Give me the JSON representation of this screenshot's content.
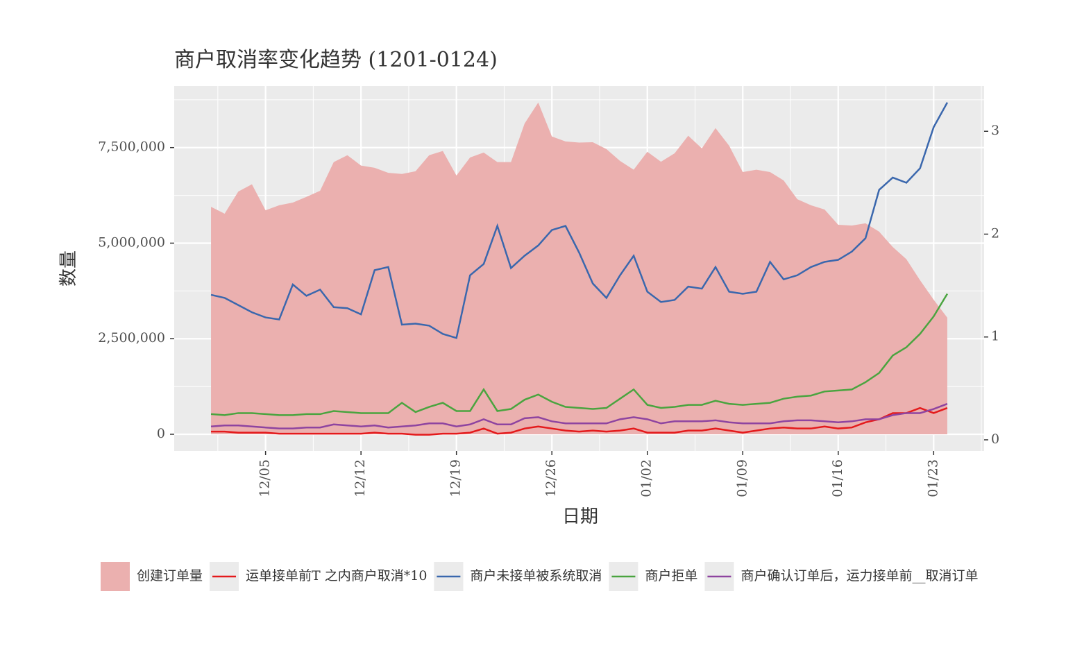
{
  "chart_data": {
    "type": "line",
    "title": "商户取消率变化趋势 (1201-0124)",
    "x_label": "日期",
    "y_label": "数量",
    "categories": [
      null,
      null,
      null,
      null,
      "12/05",
      null,
      null,
      null,
      null,
      null,
      null,
      "12/12",
      null,
      null,
      null,
      null,
      null,
      null,
      "12/19",
      null,
      null,
      null,
      null,
      null,
      null,
      "12/26",
      null,
      null,
      null,
      null,
      null,
      null,
      "01/02",
      null,
      null,
      null,
      null,
      null,
      null,
      "01/09",
      null,
      null,
      null,
      null,
      null,
      null,
      "01/16",
      null,
      null,
      null,
      null,
      null,
      null,
      "01/23",
      null
    ],
    "ylim": [
      -436000,
      9110000
    ],
    "yticks": [
      {
        "value": 0,
        "label": "0"
      },
      {
        "value": 2500000,
        "label": "2,500,000"
      },
      {
        "value": 5000000,
        "label": "5,000,000"
      },
      {
        "value": 7500000,
        "label": "7,500,000"
      }
    ],
    "y2lim": [
      -0.108,
      3.44
    ],
    "y2ticks": [
      0,
      1,
      2,
      3
    ],
    "grid": true,
    "legend": "bottom",
    "series": [
      {
        "name": "创建订单量",
        "type": "area",
        "color": "#ebb0af",
        "values": [
          5950000,
          5770000,
          6350000,
          6540000,
          5860000,
          5990000,
          6060000,
          6210000,
          6370000,
          7120000,
          7300000,
          7030000,
          6970000,
          6840000,
          6810000,
          6880000,
          7300000,
          7410000,
          6770000,
          7240000,
          7370000,
          7120000,
          7120000,
          8130000,
          8680000,
          7790000,
          7660000,
          7630000,
          7640000,
          7460000,
          7150000,
          6920000,
          7390000,
          7130000,
          7350000,
          7810000,
          7480000,
          8010000,
          7550000,
          6860000,
          6920000,
          6860000,
          6640000,
          6150000,
          5990000,
          5880000,
          5480000,
          5460000,
          5520000,
          5300000,
          4900000,
          4580000,
          4030000,
          3520000,
          3050000
        ]
      },
      {
        "name": "运单接单前T 之内商户取消*10",
        "type": "line",
        "axis": "y2",
        "color": "#e41a1c",
        "values": [
          0.08,
          0.08,
          0.07,
          0.07,
          0.07,
          0.06,
          0.06,
          0.06,
          0.06,
          0.06,
          0.06,
          0.06,
          0.07,
          0.06,
          0.06,
          0.05,
          0.05,
          0.06,
          0.06,
          0.07,
          0.11,
          0.06,
          0.07,
          0.11,
          0.13,
          0.11,
          0.09,
          0.08,
          0.09,
          0.08,
          0.09,
          0.11,
          0.07,
          0.07,
          0.07,
          0.09,
          0.09,
          0.11,
          0.09,
          0.07,
          0.09,
          0.11,
          0.12,
          0.11,
          0.11,
          0.13,
          0.11,
          0.12,
          0.17,
          0.2,
          0.26,
          0.26,
          0.31,
          0.26,
          0.31
        ]
      },
      {
        "name": "商户未接单被系统取消",
        "type": "line",
        "axis": "y2",
        "color": "#3a67ad",
        "values": [
          1.41,
          1.38,
          1.31,
          1.24,
          1.19,
          1.17,
          1.51,
          1.4,
          1.46,
          1.29,
          1.28,
          1.22,
          1.65,
          1.68,
          1.12,
          1.13,
          1.11,
          1.03,
          0.99,
          1.6,
          1.71,
          2.08,
          1.67,
          1.79,
          1.89,
          2.04,
          2.08,
          1.82,
          1.52,
          1.38,
          1.6,
          1.79,
          1.44,
          1.34,
          1.36,
          1.49,
          1.47,
          1.68,
          1.44,
          1.42,
          1.44,
          1.73,
          1.56,
          1.6,
          1.68,
          1.73,
          1.75,
          1.83,
          1.96,
          2.43,
          2.55,
          2.5,
          2.64,
          3.04,
          3.28
        ]
      },
      {
        "name": "商户拒单",
        "type": "line",
        "axis": "y2",
        "color": "#4aa43f",
        "values": [
          0.25,
          0.24,
          0.26,
          0.26,
          0.25,
          0.24,
          0.24,
          0.25,
          0.25,
          0.28,
          0.27,
          0.26,
          0.26,
          0.26,
          0.36,
          0.27,
          0.32,
          0.36,
          0.28,
          0.28,
          0.49,
          0.28,
          0.3,
          0.39,
          0.44,
          0.37,
          0.32,
          0.31,
          0.3,
          0.31,
          0.4,
          0.49,
          0.34,
          0.31,
          0.32,
          0.34,
          0.34,
          0.38,
          0.35,
          0.34,
          0.35,
          0.36,
          0.4,
          0.42,
          0.43,
          0.47,
          0.48,
          0.49,
          0.56,
          0.65,
          0.82,
          0.9,
          1.03,
          1.2,
          1.42
        ]
      },
      {
        "name": "商户确认订单后，运力接单前__取消订单",
        "type": "line",
        "axis": "y2",
        "color": "#8e44a0",
        "values": [
          0.13,
          0.14,
          0.14,
          0.13,
          0.12,
          0.11,
          0.11,
          0.12,
          0.12,
          0.15,
          0.14,
          0.13,
          0.14,
          0.12,
          0.13,
          0.14,
          0.16,
          0.16,
          0.13,
          0.15,
          0.2,
          0.15,
          0.15,
          0.21,
          0.22,
          0.18,
          0.16,
          0.16,
          0.16,
          0.16,
          0.2,
          0.22,
          0.2,
          0.16,
          0.18,
          0.18,
          0.18,
          0.19,
          0.17,
          0.16,
          0.16,
          0.16,
          0.18,
          0.19,
          0.19,
          0.18,
          0.17,
          0.18,
          0.2,
          0.2,
          0.24,
          0.26,
          0.26,
          0.3,
          0.35
        ]
      }
    ]
  }
}
